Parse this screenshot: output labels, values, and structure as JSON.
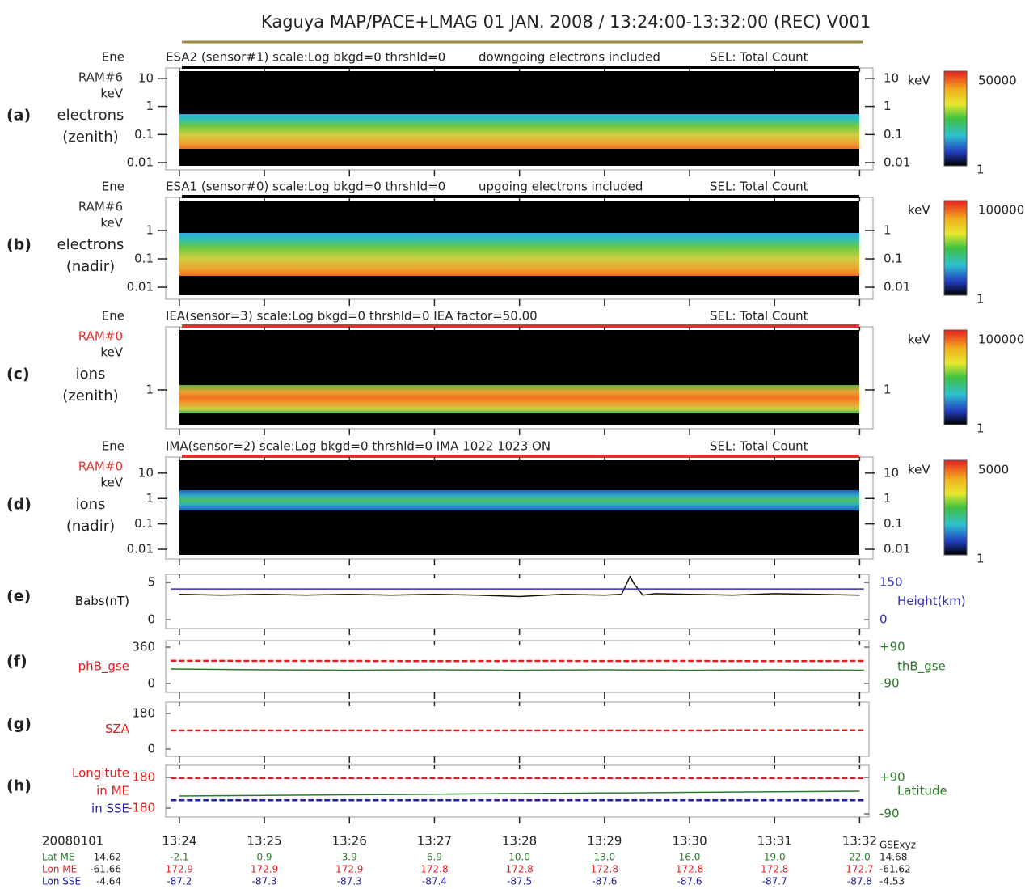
{
  "title": "Kaguya  MAP/PACE+LMAG  01 JAN. 2008 / 13:24:00-13:32:00 (REC) V001",
  "title_line_color": "#9a8a3a",
  "time_axis": {
    "xlim": [
      -0.16,
      8.11
    ],
    "xticks": [
      {
        "value": 0,
        "label": "13:24"
      },
      {
        "value": 1,
        "label": "13:25"
      },
      {
        "value": 2,
        "label": "13:26"
      },
      {
        "value": 3,
        "label": "13:27"
      },
      {
        "value": 4,
        "label": "13:28"
      },
      {
        "value": 5,
        "label": "13:29"
      },
      {
        "value": 6,
        "label": "13:30"
      },
      {
        "value": 7,
        "label": "13:31"
      },
      {
        "value": 8,
        "label": "13:32"
      }
    ]
  },
  "spectrograms": [
    {
      "label": "(a)",
      "name": [
        "electrons",
        "(zenith)"
      ],
      "axis_labels": [
        "Ene",
        "RAM#6",
        "keV"
      ],
      "ram_color": "#333333",
      "header": {
        "left": "ESA2 (sensor#1) scale:Log bkgd=0 thrshld=0",
        "middle": "downgoing electrons included",
        "right": "SEL: Total Count"
      },
      "header_line_color": "#000000",
      "log_scale": true,
      "ylim": [
        0.0077,
        18
      ],
      "yticks": [
        10,
        1,
        0.1,
        0.01
      ],
      "colorbar": {
        "max": 50000,
        "min": 1
      }
    },
    {
      "label": "(b)",
      "name": [
        "electrons",
        "(nadir)"
      ],
      "axis_labels": [
        "Ene",
        "RAM#6",
        "keV"
      ],
      "ram_color": "#333333",
      "header": {
        "left": "ESA1 (sensor#0) scale:Log bkgd=0 thrshld=0",
        "middle": "upgoing electrons included",
        "right": "SEL: Total Count"
      },
      "header_line_color": "#000000",
      "log_scale": true,
      "ylim": [
        0.0052,
        11.4
      ],
      "yticks": [
        1,
        0.1,
        0.01
      ],
      "colorbar": {
        "max": 100000,
        "min": 1
      }
    },
    {
      "label": "(c)",
      "name": [
        "ions",
        "(zenith)"
      ],
      "axis_labels": [
        "Ene",
        "RAM#0",
        "keV"
      ],
      "ram_color": "#e03030",
      "header": {
        "left": "IEA(sensor=3) scale:Log bkgd=0 thrshld=0 IEA factor=50.00",
        "right": "SEL: Total Count"
      },
      "header_line_color": "#e03030",
      "log_scale": true,
      "ylim": [
        0.059,
        130
      ],
      "yticks": [
        1
      ],
      "colorbar": {
        "max": 100000,
        "min": 1
      }
    },
    {
      "label": "(d)",
      "name": [
        "ions",
        "(nadir)"
      ],
      "axis_labels": [
        "Ene",
        "RAM#0",
        "keV"
      ],
      "ram_color": "#e03030",
      "header": {
        "left": "IMA(sensor=2) scale:Log bkgd=0 thrshld=0 IMA 1022 1023 ON",
        "right": "SEL: Total Count"
      },
      "header_line_color": "#e03030",
      "log_scale": true,
      "ylim": [
        0.006,
        32
      ],
      "yticks": [
        10,
        1,
        0.1,
        0.01
      ],
      "colorbar": {
        "max": 5000,
        "min": 1
      }
    }
  ],
  "line_panels": [
    {
      "label": "(e)",
      "ylim": [
        -1.2,
        6.1
      ],
      "yticks": [
        0,
        5
      ],
      "y2lim": [
        -36,
        183
      ],
      "y2ticks": [
        0,
        150
      ],
      "left_tick_color": "#222222",
      "right_tick_color": "#3030b0",
      "series": [
        {
          "name": [
            "Babs(nT)"
          ],
          "color": "#111111",
          "x": [
            0,
            0.5,
            1,
            1.5,
            2,
            2.5,
            3,
            3.5,
            4,
            4.5,
            5,
            5.2,
            5.3,
            5.35,
            5.45,
            5.6,
            6,
            6.5,
            7,
            7.5,
            8
          ],
          "values": [
            3.4,
            3.3,
            3.4,
            3.3,
            3.4,
            3.3,
            3.4,
            3.3,
            3.1,
            3.4,
            3.3,
            3.4,
            5.8,
            4.8,
            3.3,
            3.5,
            3.4,
            3.3,
            3.5,
            3.4,
            3.3
          ]
        },
        {
          "name": [
            "Height(km)"
          ],
          "color": "#3030b0",
          "axis": "y2",
          "x": [
            -0.1,
            8.05
          ],
          "values": [
            124,
            124
          ]
        }
      ]
    },
    {
      "label": "(f)",
      "ylim": [
        -88,
        424
      ],
      "yticks": [
        0,
        360
      ],
      "y2lim": [
        -134,
        122
      ],
      "y2ticks": [
        {
          "value": -90,
          "label": "-90"
        },
        {
          "value": 90,
          "label": "+90"
        }
      ],
      "left_tick_color": "#222222",
      "right_tick_color": "#2a7a2a",
      "series": [
        {
          "name": [
            "phB_gse"
          ],
          "color": "#e02020",
          "dashed": true,
          "x": [
            -0.1,
            1,
            2,
            3,
            4,
            5,
            6,
            7,
            8.05
          ],
          "values": [
            226,
            224,
            224,
            222,
            224,
            223,
            224,
            222,
            224
          ]
        },
        {
          "name": [
            "thB_gse"
          ],
          "color": "#2a7a2a",
          "axis": "y2",
          "x": [
            -0.1,
            1,
            2,
            3,
            4,
            5,
            6,
            7,
            8.05
          ],
          "values": [
            -18,
            -22,
            -24,
            -22,
            -24,
            -22,
            -24,
            -22,
            -24
          ]
        }
      ]
    },
    {
      "label": "(g)",
      "ylim": [
        -37,
        237
      ],
      "yticks": [
        0,
        180
      ],
      "left_tick_color": "#222222",
      "series": [
        {
          "name": [
            "SZA"
          ],
          "color": "#e02020",
          "dashed": true,
          "x": [
            -0.1,
            6.3,
            6.31,
            8.05
          ],
          "values": [
            94,
            94,
            95,
            95
          ]
        }
      ]
    },
    {
      "label": "(h)",
      "ylim": [
        -284,
        322
      ],
      "yticks": [
        -180,
        180
      ],
      "y2lim": [
        -106,
        150
      ],
      "y2ticks": [
        {
          "value": -90,
          "label": "-90"
        },
        {
          "value": 90,
          "label": "+90"
        }
      ],
      "left_tick_color": "#e02020",
      "right_tick_color": "#2a7a2a",
      "series": [
        {
          "name": [
            "Longitute",
            "in ME"
          ],
          "color": "#e02020",
          "dashed": true,
          "x": [
            -0.1,
            8.05
          ],
          "values": [
            172.9,
            172.7
          ]
        },
        {
          "name": [
            "in SSE"
          ],
          "color": "#2020a0",
          "dashed": true,
          "x": [
            -0.1,
            8.05
          ],
          "values": [
            -87.2,
            -87.8
          ]
        },
        {
          "name": [
            "Latitude"
          ],
          "color": "#2a7a2a",
          "axis": "y2",
          "x": [
            0,
            1,
            2,
            3,
            4,
            5,
            6,
            7,
            8
          ],
          "values": [
            -2.1,
            0.9,
            3.9,
            6.9,
            10,
            13,
            16,
            19,
            22
          ]
        }
      ]
    }
  ],
  "footer": {
    "date": "20080101",
    "frame": "GSExyz",
    "rows": [
      {
        "name": "Lat ME",
        "color": "#2a7a2a",
        "start": "14.62",
        "values": [
          "-2.1",
          "0.9",
          "3.9",
          "6.9",
          "10.0",
          "13.0",
          "16.0",
          "19.0",
          "22.0"
        ],
        "end": "14.68"
      },
      {
        "name": "Lon ME",
        "color": "#e02020",
        "start": "-61.66",
        "values": [
          "172.9",
          "172.9",
          "172.9",
          "172.8",
          "172.8",
          "172.8",
          "172.8",
          "172.8",
          "172.7"
        ],
        "end": "-61.62"
      },
      {
        "name": "Lon SSE",
        "color": "#2020a0",
        "start": "-4.64",
        "values": [
          "-87.2",
          "-87.3",
          "-87.3",
          "-87.4",
          "-87.5",
          "-87.6",
          "-87.6",
          "-87.7",
          "-87.8"
        ],
        "end": "-4.53"
      }
    ]
  }
}
